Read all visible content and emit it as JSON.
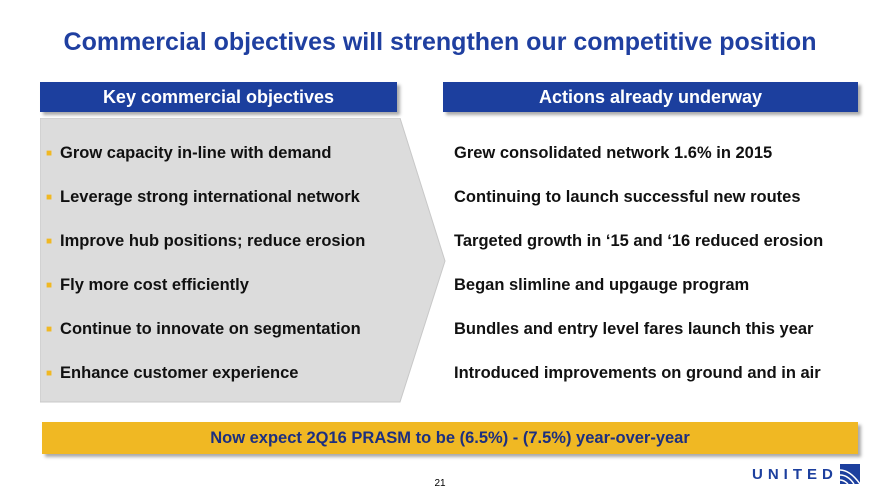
{
  "title": "Commercial objectives will strengthen our competitive position",
  "left": {
    "header": "Key commercial objectives",
    "items": [
      "Grow capacity in-line with demand",
      "Leverage strong international network",
      "Improve hub positions; reduce erosion",
      "Fly more cost efficiently",
      "Continue to innovate on segmentation",
      "Enhance customer experience"
    ]
  },
  "right": {
    "header": "Actions already underway",
    "items": [
      "Grew consolidated network 1.6% in 2015",
      "Continuing to launch successful new routes",
      "Targeted growth in ‘15 and ‘16 reduced erosion",
      "Began slimline and upgauge program",
      "Bundles and entry level fares launch this year",
      "Introduced improvements on ground and in air"
    ]
  },
  "banner": "Now expect 2Q16 PRASM to be (6.5%) - (7.5%) year-over-year",
  "page_number": "21",
  "logo": "UNITED"
}
